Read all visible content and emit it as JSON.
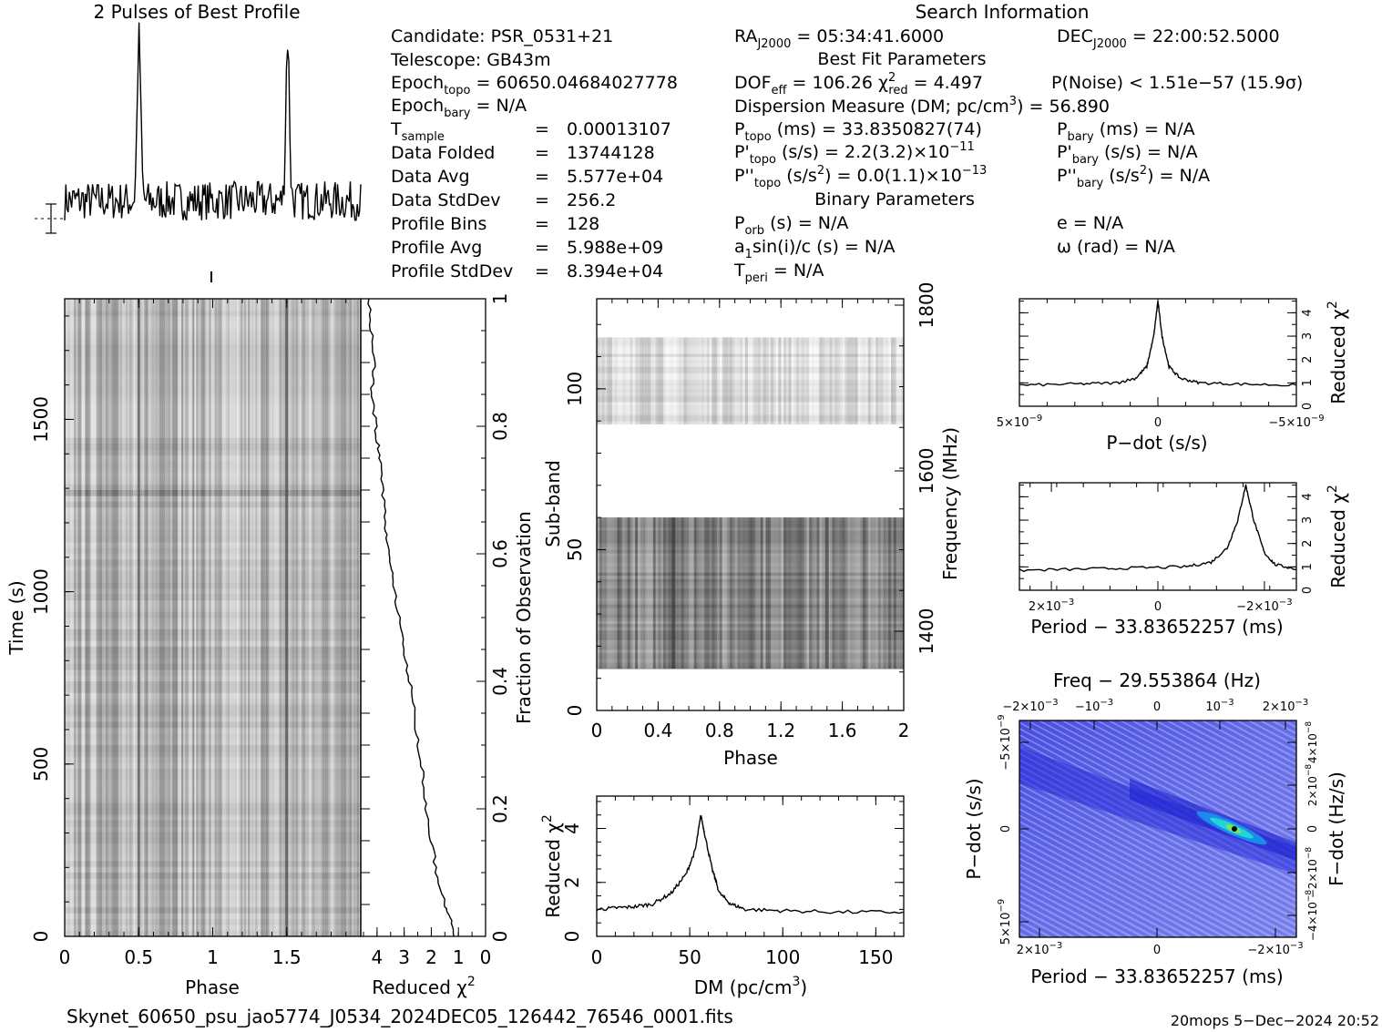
{
  "header": {
    "profile_title": "2 Pulses of Best Profile",
    "search_title": "Search Information"
  },
  "info": {
    "candidate": "Candidate:  PSR_0531+21",
    "telescope": "Telescope:  GB43m",
    "epoch_topo": "60650.04684027778",
    "epoch_bary": "N/A",
    "t_sample": "0.00013107",
    "data_folded_label": "Data Folded",
    "data_folded": "13744128",
    "data_avg_label": "Data Avg",
    "data_avg": "5.577e+04",
    "data_stddev_label": "Data StdDev",
    "data_stddev": "256.2",
    "profile_bins_label": "Profile Bins",
    "profile_bins": "128",
    "profile_avg_label": "Profile Avg",
    "profile_avg": "5.988e+09",
    "profile_stddev_label": "Profile StdDev",
    "profile_stddev": "8.394e+04",
    "ra": "05:34:41.6000",
    "dec": "22:00:52.5000",
    "best_fit_title": "Best Fit Parameters",
    "dof_eff": "106.26",
    "chi2_red": "4.497",
    "p_noise": "P(Noise) < 1.51e−57   (15.9σ)",
    "dm_line": "Dispersion Measure (DM; pc/cm",
    "dm_value": "56.890",
    "p_topo": "33.8350827(74)",
    "p_bary": "N/A",
    "pd_topo": "2.2(3.2)×10",
    "pd_topo_exp": "−11",
    "pd_bary": "N/A",
    "pdd_topo": "0.0(1.1)×10",
    "pdd_topo_exp": "−13",
    "pdd_bary": "N/A",
    "binary_title": "Binary Parameters",
    "p_orb": "N/A",
    "eccentricity": "e = N/A",
    "a1sini": "N/A",
    "omega": "ω (rad) = N/A",
    "t_peri": "N/A"
  },
  "footer": {
    "filename": "Skynet_60650_psu_jao5774_J0534_2024DEC05_126442_76546_0001.fits",
    "stamp": "20mops   5−Dec−2024 20:52"
  },
  "chart_data": [
    {
      "id": "best_profile",
      "type": "line",
      "title": "2 Pulses of Best Profile",
      "x": "phase 0–2 (128 bins per pulse)",
      "peaks_at_phase": [
        0.5,
        1.5
      ],
      "baseline": 0.25,
      "peak_height": 1.0
    },
    {
      "id": "time_phase",
      "type": "heatmap",
      "xlabel": "Phase",
      "ylabel": "Time (s)",
      "xlim": [
        0,
        2
      ],
      "ylim": [
        0,
        1850
      ],
      "xticks": [
        "0",
        "0.5",
        "1",
        "1.5"
      ],
      "yticks": [
        "0",
        "500",
        "1000",
        "1500"
      ],
      "pulse_columns_at_phase": [
        0.5,
        1.5
      ]
    },
    {
      "id": "time_chi2",
      "type": "line",
      "xlabel": "Reduced χ",
      "ylabel": "Fraction of Observation",
      "xlim": [
        4.6,
        0
      ],
      "ylim": [
        0,
        1
      ],
      "xticks": [
        "4",
        "3",
        "2",
        "1",
        "0"
      ],
      "yticks": [
        "0",
        "0.2",
        "0.4",
        "0.6",
        "0.8",
        "1"
      ],
      "points": [
        [
          1.2,
          0.0
        ],
        [
          1.3,
          0.03
        ],
        [
          1.5,
          0.05
        ],
        [
          1.8,
          0.1
        ],
        [
          2.0,
          0.15
        ],
        [
          2.2,
          0.2
        ],
        [
          2.3,
          0.25
        ],
        [
          2.5,
          0.3
        ],
        [
          2.6,
          0.35
        ],
        [
          2.8,
          0.4
        ],
        [
          3.0,
          0.45
        ],
        [
          3.2,
          0.5
        ],
        [
          3.4,
          0.55
        ],
        [
          3.5,
          0.58
        ],
        [
          3.6,
          0.62
        ],
        [
          3.7,
          0.65
        ],
        [
          3.8,
          0.7
        ],
        [
          3.9,
          0.75
        ],
        [
          4.0,
          0.78
        ],
        [
          4.1,
          0.82
        ],
        [
          4.2,
          0.86
        ],
        [
          4.1,
          0.9
        ],
        [
          4.2,
          0.95
        ],
        [
          4.3,
          1.0
        ]
      ]
    },
    {
      "id": "subband_phase",
      "type": "heatmap",
      "xlabel": "Phase",
      "ylabel": "Sub-band",
      "y2label": "Frequency (MHz)",
      "xlim": [
        0,
        2
      ],
      "ylim": [
        0,
        128
      ],
      "xticks": [
        "0",
        "0.4",
        "0.8",
        "1.2",
        "1.6",
        "2"
      ],
      "yticks": [
        "0",
        "50",
        "100"
      ],
      "y2ticks": [
        "1400",
        "1600",
        "1800"
      ],
      "populated_subbands": [
        [
          13,
          60
        ],
        [
          89,
          116
        ]
      ],
      "pulse_columns_at_phase": [
        0.5,
        1.5
      ]
    },
    {
      "id": "dm_chi2",
      "type": "line",
      "xlabel": "DM (pc/cm",
      "ylabel": "Reduced χ",
      "xlim": [
        0,
        165
      ],
      "ylim": [
        0,
        5.2
      ],
      "xticks": [
        "0",
        "50",
        "100",
        "150"
      ],
      "yticks": [
        "0",
        "2",
        "4"
      ],
      "points": [
        [
          0,
          1.0
        ],
        [
          10,
          1.05
        ],
        [
          20,
          1.1
        ],
        [
          30,
          1.2
        ],
        [
          40,
          1.6
        ],
        [
          48,
          2.3
        ],
        [
          53,
          3.2
        ],
        [
          56,
          4.5
        ],
        [
          58,
          3.8
        ],
        [
          62,
          2.5
        ],
        [
          66,
          1.6
        ],
        [
          72,
          1.2
        ],
        [
          80,
          1.0
        ],
        [
          100,
          0.95
        ],
        [
          130,
          0.9
        ],
        [
          165,
          0.9
        ]
      ]
    },
    {
      "id": "pdot_chi2",
      "type": "line",
      "xlabel": "P−dot (s/s)",
      "ylabel": "Reduced χ",
      "xlim": [
        5e-09,
        -5e-09
      ],
      "ylim": [
        0,
        4.6
      ],
      "xticks": [
        "5×10",
        "0",
        "−5×10"
      ],
      "yticks": [
        "0",
        "1",
        "2",
        "3",
        "4"
      ],
      "points": [
        [
          5e-09,
          0.9
        ],
        [
          3e-09,
          0.95
        ],
        [
          1.5e-09,
          1.0
        ],
        [
          8e-10,
          1.2
        ],
        [
          4e-10,
          1.7
        ],
        [
          1.5e-10,
          3.0
        ],
        [
          0,
          4.5
        ],
        [
          -1.5e-10,
          3.0
        ],
        [
          -4e-10,
          1.7
        ],
        [
          -8e-10,
          1.2
        ],
        [
          -1.5e-09,
          1.0
        ],
        [
          -3e-09,
          0.95
        ],
        [
          -5e-09,
          0.9
        ]
      ]
    },
    {
      "id": "period_chi2",
      "type": "line",
      "xlabel": "Period − 33.83652257 (ms)",
      "ylabel": "Reduced χ",
      "xlim": [
        0.0026,
        -0.0026
      ],
      "ylim": [
        0,
        4.6
      ],
      "xticks": [
        "2×10",
        "0",
        "−2×10"
      ],
      "yticks": [
        "0",
        "1",
        "2",
        "3",
        "4"
      ],
      "points": [
        [
          0.0026,
          0.85
        ],
        [
          0.0015,
          0.9
        ],
        [
          0.0005,
          0.95
        ],
        [
          -0.0005,
          1.0
        ],
        [
          -0.001,
          1.2
        ],
        [
          -0.0013,
          1.8
        ],
        [
          -0.0015,
          3.0
        ],
        [
          -0.00165,
          4.5
        ],
        [
          -0.0018,
          3.0
        ],
        [
          -0.002,
          1.6
        ],
        [
          -0.0022,
          1.1
        ],
        [
          -0.0026,
          0.9
        ]
      ]
    },
    {
      "id": "p_pdot",
      "type": "heatmap",
      "title": "Freq − 29.553864 (Hz)",
      "xlabel": "Period − 33.83652257 (ms)",
      "ylabel": "P−dot (s/s)",
      "y2label": "F−dot (Hz/s)",
      "bottom_ticks": [
        "2×10",
        "0",
        "−2×10"
      ],
      "top_ticks": [
        "−2×10",
        "−10",
        "0",
        "10",
        "2×10"
      ],
      "left_ticks": [
        "−5×10",
        "0",
        "5×10"
      ],
      "right_ticks": [
        "4×10",
        "2×10",
        "0",
        "−2×10",
        "−4×10"
      ],
      "best_fit": {
        "period_offset_ms": -0.00165,
        "pdot": 0.0
      }
    }
  ]
}
